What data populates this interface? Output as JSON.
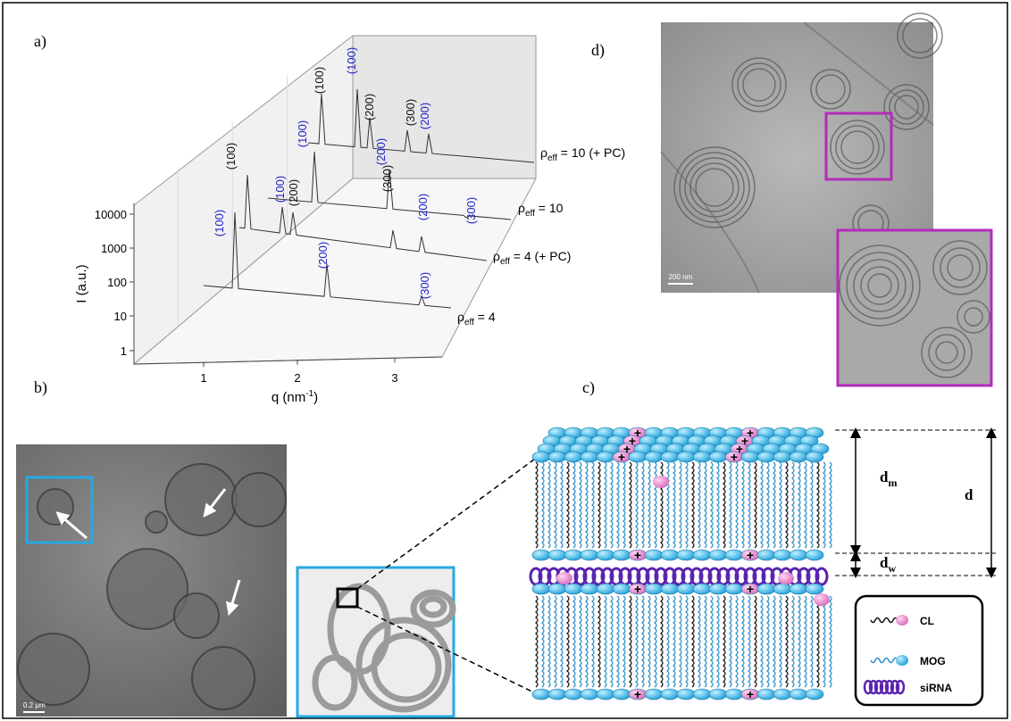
{
  "panel_labels": [
    "a)",
    "b)",
    "c)",
    "d)"
  ],
  "plot": {
    "y_label": "I (a.u.)",
    "x_label": {
      "text": "q (nm",
      "sup": "-1",
      "close": ")"
    },
    "yticks": [
      "10000",
      "1000",
      "100",
      "10",
      "1"
    ],
    "xticks": [
      "1",
      "2",
      "3"
    ],
    "traces": [
      {
        "label": {
          "symbol": "ρ",
          "sub": "eff",
          "text": " = 4"
        },
        "peaks": [
          {
            "label": "(100)",
            "color": "#2323c8"
          },
          {
            "label": "(200)",
            "color": "#2323c8"
          },
          {
            "label": "(300)",
            "color": "#2323c8"
          }
        ]
      },
      {
        "label": {
          "symbol": "ρ",
          "sub": "eff",
          "text": " = 4 (+ PC)"
        },
        "peaks": [
          {
            "label": "(100)",
            "color": "#111111"
          },
          {
            "label": "(100)",
            "color": "#2323c8"
          },
          {
            "label": "(200)",
            "color": "#111111"
          },
          {
            "label": "(300)",
            "color": "#111111"
          },
          {
            "label": "(200)",
            "color": "#2323c8"
          }
        ]
      },
      {
        "label": {
          "symbol": "ρ",
          "sub": "eff",
          "text": " = 10"
        },
        "peaks": [
          {
            "label": "(100)",
            "color": "#2323c8"
          },
          {
            "label": "(200)",
            "color": "#2323c8"
          },
          {
            "label": "(300)",
            "color": "#2323c8"
          }
        ]
      },
      {
        "label": {
          "symbol": "ρ",
          "sub": "eff",
          "text": " = 10 (+ PC)"
        },
        "peaks": [
          {
            "label": "(100)",
            "color": "#111111"
          },
          {
            "label": "(100)",
            "color": "#2323c8"
          },
          {
            "label": "(200)",
            "color": "#111111"
          },
          {
            "label": "(300)",
            "color": "#111111"
          },
          {
            "label": "(200)",
            "color": "#2323c8"
          }
        ]
      }
    ]
  },
  "micrograph_b": {
    "scale_bar": "0.2 μm"
  },
  "micrograph_d": {
    "scale_bar": "200 nm"
  },
  "schematic": {
    "dimensions": {
      "membrane": {
        "symbol": "d",
        "sub": "m"
      },
      "water": {
        "symbol": "d",
        "sub": "w"
      },
      "total": "d"
    },
    "legend": [
      "CL",
      "MOG",
      "siRNA"
    ]
  }
}
